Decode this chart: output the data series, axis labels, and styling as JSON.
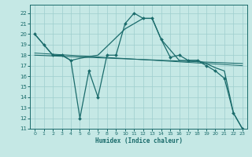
{
  "title": "",
  "xlabel": "Humidex (Indice chaleur)",
  "xlim": [
    -0.5,
    23.5
  ],
  "ylim": [
    11,
    22.8
  ],
  "yticks": [
    11,
    12,
    13,
    14,
    15,
    16,
    17,
    18,
    19,
    20,
    21,
    22
  ],
  "xticks": [
    0,
    1,
    2,
    3,
    4,
    5,
    6,
    7,
    8,
    9,
    10,
    11,
    12,
    13,
    14,
    15,
    16,
    17,
    18,
    19,
    20,
    21,
    22,
    23
  ],
  "bg_color": "#c5e8e5",
  "line_color": "#1a6b6b",
  "grid_color": "#9ecece",
  "series1_x": [
    0,
    1,
    2,
    3,
    4,
    5,
    6,
    7,
    8,
    9,
    10,
    11,
    12,
    13,
    14,
    15,
    16,
    17,
    18,
    19,
    20,
    21,
    22,
    23
  ],
  "series1_y": [
    20,
    19,
    18,
    18,
    17.5,
    12,
    16.5,
    14,
    18,
    18,
    21,
    22,
    21.5,
    21.5,
    19.5,
    17.8,
    18,
    17.5,
    17.5,
    17,
    16.5,
    15.8,
    12.5,
    11
  ],
  "series2_x": [
    0,
    1,
    2,
    3,
    4,
    5,
    7,
    10,
    11,
    12,
    13,
    14,
    16,
    17,
    18,
    19,
    20,
    21,
    22,
    23
  ],
  "series2_y": [
    20,
    19,
    18,
    18,
    17.5,
    17.7,
    18,
    20.5,
    21,
    21.5,
    21.5,
    19.5,
    17.5,
    17.5,
    17.5,
    17.2,
    16.8,
    16.5,
    12.5,
    11
  ],
  "series3_x": [
    0,
    23
  ],
  "series3_y": [
    18.0,
    17.2
  ],
  "series4_x": [
    0,
    23
  ],
  "series4_y": [
    18.2,
    17.0
  ]
}
